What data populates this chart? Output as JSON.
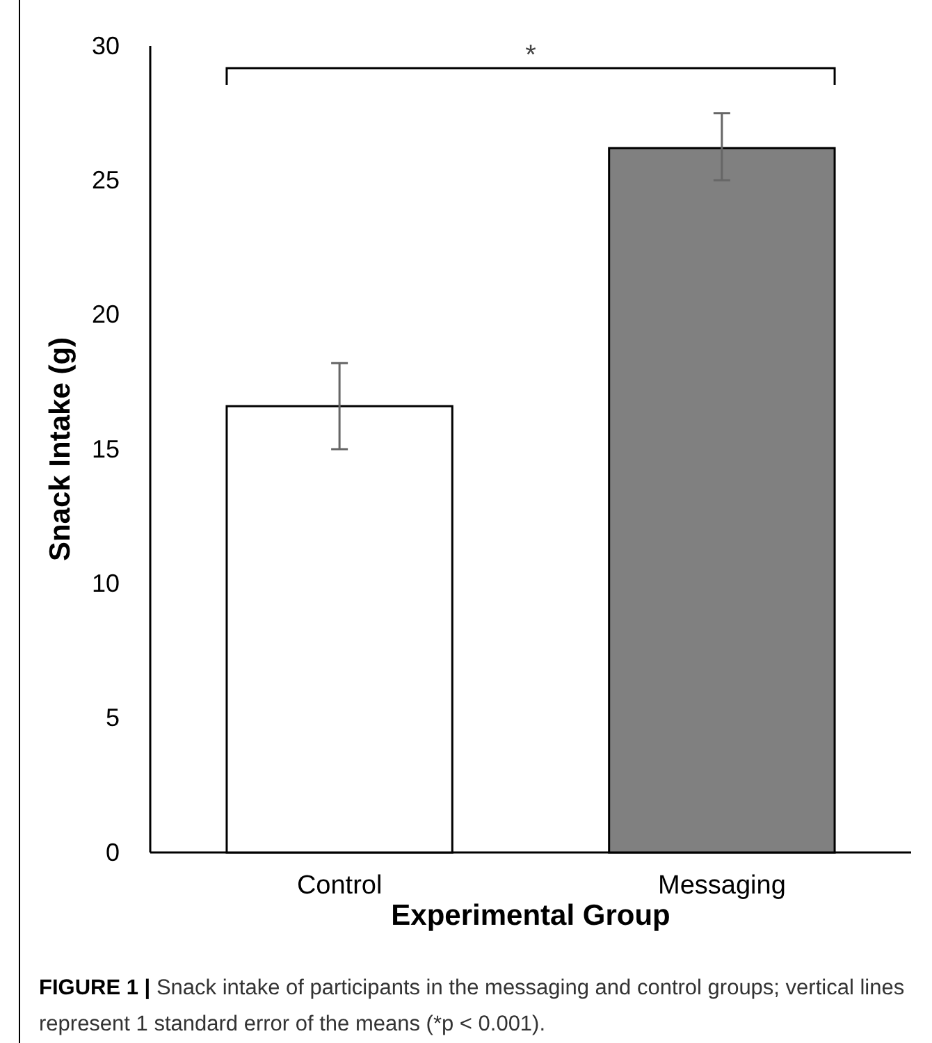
{
  "chart_data": {
    "type": "bar",
    "categories": [
      "Control",
      "Messaging"
    ],
    "values": [
      16.6,
      26.2
    ],
    "colors": [
      "#ffffff",
      "#808080"
    ],
    "errors": [
      [
        15.0,
        18.2
      ],
      [
        25.0,
        27.5
      ]
    ],
    "ylim": [
      0,
      30
    ],
    "yticks": [
      0,
      5,
      10,
      15,
      20,
      25,
      30
    ],
    "xlabel": "Experimental Group",
    "ylabel": "Snack Intake (g)",
    "grid": false,
    "annotations": [
      "*",
      "FIGURE 1 | Snack intake of participants in the messaging and control groups; vertical lines represent 1 standard error of the means (*p < 0.001)."
    ]
  }
}
